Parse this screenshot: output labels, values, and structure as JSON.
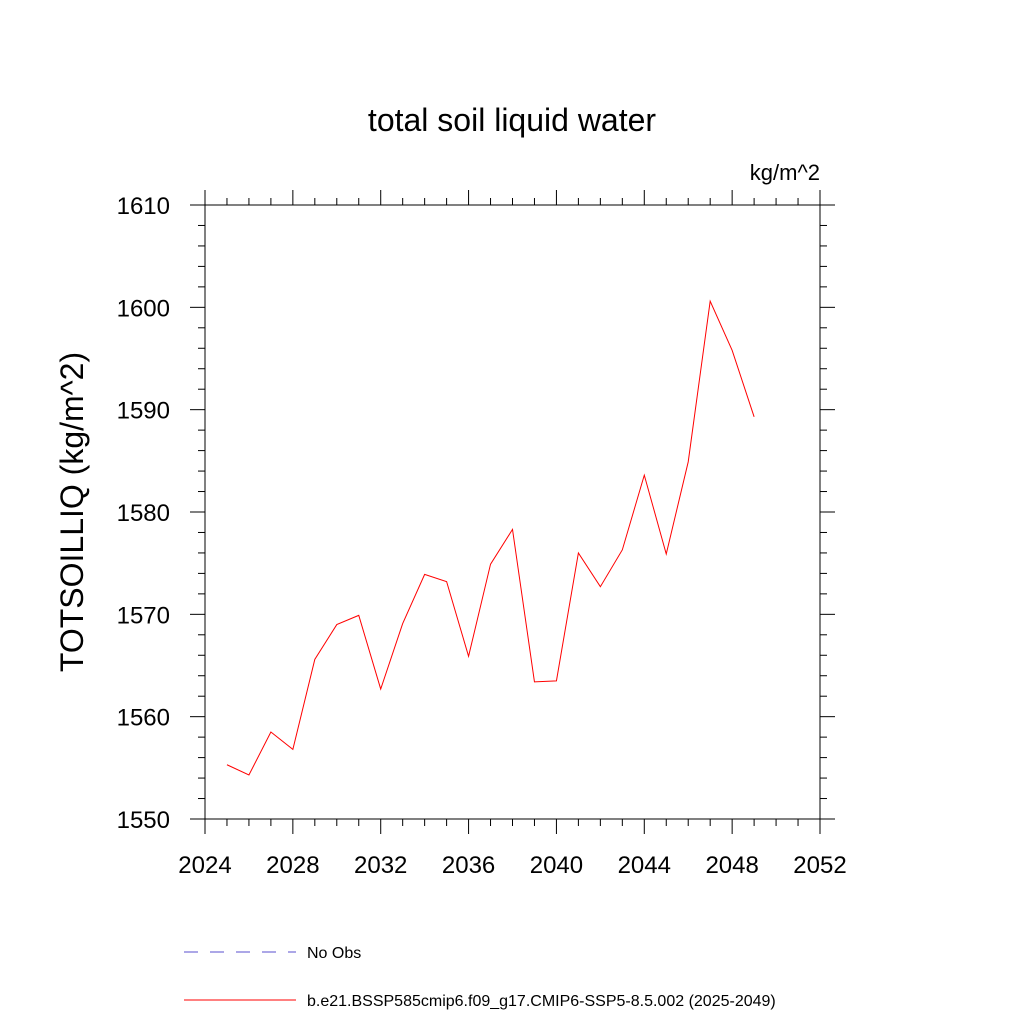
{
  "chart_data": {
    "type": "line",
    "title": "total soil liquid water",
    "units_label": "kg/m^2",
    "ylabel": "TOTSOILLIQ  (kg/m^2)",
    "xlabel": "",
    "xlim": [
      2024,
      2052
    ],
    "ylim": [
      1550,
      1610
    ],
    "x_ticks": [
      2024,
      2028,
      2032,
      2036,
      2040,
      2044,
      2048,
      2052
    ],
    "x_tick_labels": [
      "2024",
      "2028",
      "2032",
      "2036",
      "2040",
      "2044",
      "2048",
      "2052"
    ],
    "x_minor_step": 1,
    "y_ticks": [
      1550,
      1560,
      1570,
      1580,
      1590,
      1600,
      1610
    ],
    "y_tick_labels": [
      "1550",
      "1560",
      "1570",
      "1580",
      "1590",
      "1600",
      "1610"
    ],
    "y_minor_step": 2,
    "grid": false,
    "legend_position": "bottom",
    "series": [
      {
        "name": "No Obs",
        "color": "#5a4fcf",
        "dash": "dashed",
        "x": [],
        "y": []
      },
      {
        "name": "b.e21.BSSP585cmip6.f09_g17.CMIP6-SSP5-8.5.002 (2025-2049)",
        "color": "#ff0000",
        "dash": "solid",
        "x": [
          2025,
          2026,
          2027,
          2028,
          2029,
          2030,
          2031,
          2032,
          2033,
          2034,
          2035,
          2036,
          2037,
          2038,
          2039,
          2040,
          2041,
          2042,
          2043,
          2044,
          2045,
          2046,
          2047,
          2048,
          2049
        ],
        "y": [
          1555.3,
          1554.3,
          1558.5,
          1556.8,
          1565.6,
          1569.0,
          1569.9,
          1562.7,
          1569.1,
          1573.9,
          1573.2,
          1565.9,
          1574.9,
          1578.3,
          1563.4,
          1563.5,
          1576.0,
          1572.7,
          1576.3,
          1583.6,
          1575.9,
          1584.9,
          1600.6,
          1595.8,
          1589.3
        ]
      }
    ]
  }
}
